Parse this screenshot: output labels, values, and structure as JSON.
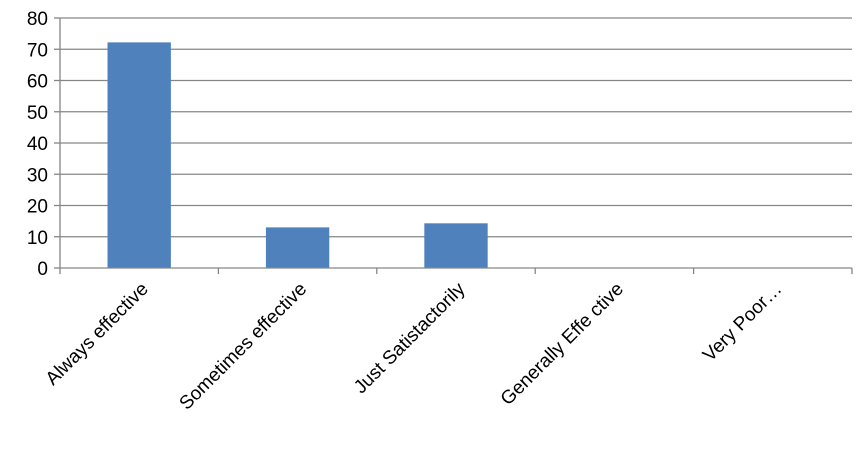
{
  "chart_data": {
    "type": "bar",
    "categories": [
      "Always effective",
      "Sometimes effective",
      "Just Satistactorily",
      "Generally Effe ctive",
      "Very Poor…"
    ],
    "values": [
      72.2,
      13,
      14.3,
      0,
      0
    ],
    "ylim": [
      0,
      80
    ],
    "yticks": [
      0,
      10,
      20,
      30,
      40,
      50,
      60,
      70,
      80
    ],
    "grid": true,
    "legend": "none",
    "bar_color": "#4F81BD",
    "grid_color": "#868686"
  }
}
